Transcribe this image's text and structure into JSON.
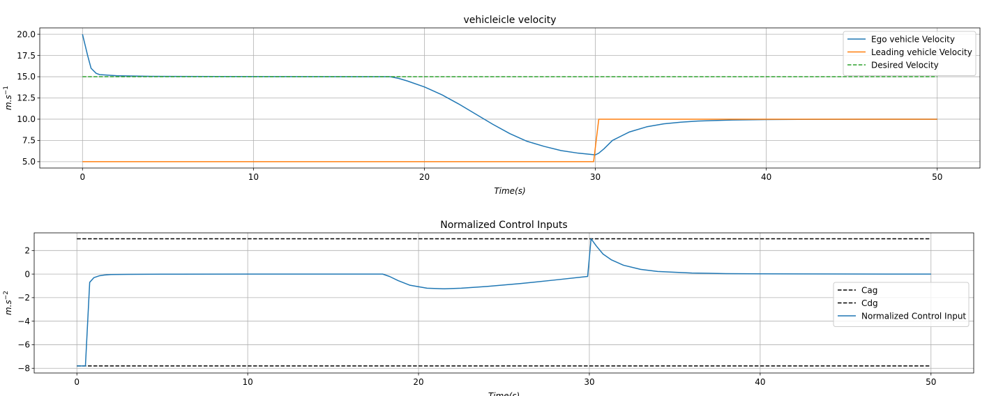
{
  "chart_data": [
    {
      "type": "line",
      "title": "vehicleicle velocity",
      "xlabel": "Time(s)",
      "ylabel_base": "m.s",
      "ylabel_exp": "−1",
      "xlim": [
        -2.5,
        52.5
      ],
      "ylim": [
        4.25,
        20.75
      ],
      "xticks": [
        0,
        10,
        20,
        30,
        40,
        50
      ],
      "yticks": [
        5.0,
        7.5,
        10.0,
        12.5,
        15.0,
        17.5,
        20.0
      ],
      "ytick_decimals": 1,
      "grid": true,
      "legend_position": "top-right",
      "series": [
        {
          "name": "Ego vehicle Velocity",
          "color": "#1f77b4",
          "dash": "solid",
          "x": [
            0,
            0.3,
            0.5,
            0.8,
            1,
            2,
            4,
            8,
            12,
            16,
            18,
            18.5,
            19,
            20,
            21,
            22,
            23,
            24,
            25,
            26,
            27,
            28,
            29,
            30,
            30.2,
            30.5,
            31,
            32,
            33,
            34,
            35,
            36,
            38,
            40,
            44,
            50
          ],
          "y": [
            20,
            17.5,
            16.0,
            15.4,
            15.25,
            15.12,
            15.05,
            15.02,
            15.01,
            15.0,
            15.0,
            14.8,
            14.5,
            13.8,
            12.9,
            11.8,
            10.6,
            9.4,
            8.3,
            7.4,
            6.8,
            6.3,
            6.0,
            5.8,
            6.0,
            6.5,
            7.5,
            8.5,
            9.1,
            9.45,
            9.65,
            9.78,
            9.9,
            9.96,
            9.99,
            10.0
          ]
        },
        {
          "name": "Leading vehicle Velocity",
          "color": "#ff7f0e",
          "dash": "solid",
          "x": [
            0,
            29.9,
            30.2,
            50
          ],
          "y": [
            5,
            5,
            10,
            10
          ]
        },
        {
          "name": "Desired Velocity",
          "color": "#2ca02c",
          "dash": "dashed",
          "x": [
            0,
            50
          ],
          "y": [
            15,
            15
          ]
        }
      ]
    },
    {
      "type": "line",
      "title": "Normalized Control Inputs",
      "xlabel": "Time(s)",
      "ylabel_base": "m.s",
      "ylabel_exp": "−2",
      "xlim": [
        -2.5,
        52.5
      ],
      "ylim": [
        -8.4,
        3.5
      ],
      "xticks": [
        0,
        10,
        20,
        30,
        40,
        50
      ],
      "yticks": [
        -8,
        -6,
        -4,
        -2,
        0,
        2
      ],
      "ytick_decimals": 0,
      "grid": true,
      "legend_position": "center-right",
      "series": [
        {
          "name": "Cag",
          "color": "#000000",
          "dash": "dashed",
          "x": [
            0,
            50
          ],
          "y": [
            3,
            3
          ]
        },
        {
          "name": "Cdg",
          "color": "#000000",
          "dash": "dashed",
          "x": [
            0,
            50
          ],
          "y": [
            -7.8,
            -7.8
          ]
        },
        {
          "name": "Normalized Control Input",
          "color": "#1f77b4",
          "dash": "solid",
          "x": [
            0,
            0.5,
            0.75,
            1,
            1.3,
            1.6,
            2,
            3,
            5,
            10,
            17.9,
            18.3,
            18.8,
            19.5,
            20.5,
            21.5,
            22.5,
            24,
            26,
            28,
            29.9,
            30.1,
            30.4,
            30.8,
            31.3,
            32,
            33,
            34,
            36,
            38,
            40,
            45,
            50
          ],
          "y": [
            -7.8,
            -7.8,
            -0.7,
            -0.3,
            -0.15,
            -0.08,
            -0.04,
            -0.02,
            -0.01,
            0,
            0,
            -0.2,
            -0.55,
            -0.95,
            -1.2,
            -1.25,
            -1.2,
            -1.05,
            -0.8,
            -0.5,
            -0.2,
            3.0,
            2.4,
            1.7,
            1.2,
            0.75,
            0.4,
            0.22,
            0.09,
            0.04,
            0.02,
            0.005,
            0
          ]
        }
      ]
    }
  ]
}
